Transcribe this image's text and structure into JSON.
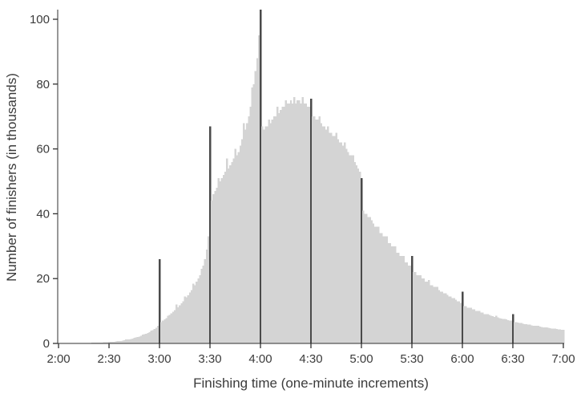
{
  "chart_data": {
    "type": "bar",
    "title": "",
    "xlabel": "Finishing time (one-minute increments)",
    "ylabel": "Number of finishers (in thousands)",
    "x_start_minutes": 120,
    "x_end_minutes": 420,
    "bin_minutes": 1,
    "x_tick_labels": [
      "2:00",
      "2:30",
      "3:00",
      "3:30",
      "4:00",
      "4:30",
      "5:00",
      "5:30",
      "6:00",
      "6:30",
      "7:00"
    ],
    "x_tick_minutes": [
      120,
      150,
      180,
      210,
      240,
      270,
      300,
      330,
      360,
      390,
      420
    ],
    "y_ticks": [
      0,
      20,
      40,
      60,
      80,
      100
    ],
    "ylim": [
      0,
      105
    ],
    "legend": "none",
    "grid": "off",
    "bar_color": "#d4d4d4",
    "spike_color": "#4a4a4a",
    "axis_color": "#2f2f2f",
    "text_color": "#3b3b3b",
    "spike_minutes": [
      180,
      210,
      240,
      270,
      300,
      330,
      360,
      390
    ],
    "values": [
      0.05,
      0.05,
      0.05,
      0.06,
      0.06,
      0.07,
      0.07,
      0.07,
      0.08,
      0.08,
      0.1,
      0.1,
      0.1,
      0.11,
      0.12,
      0.14,
      0.14,
      0.15,
      0.16,
      0.17,
      0.2,
      0.2,
      0.21,
      0.22,
      0.24,
      0.28,
      0.3,
      0.32,
      0.35,
      0.38,
      0.55,
      0.45,
      0.5,
      0.55,
      0.6,
      0.7,
      0.75,
      0.8,
      0.9,
      1.0,
      1.2,
      1.2,
      1.3,
      1.4,
      1.5,
      1.7,
      1.8,
      2.0,
      2.1,
      2.3,
      2.7,
      2.8,
      3.0,
      3.2,
      3.5,
      3.9,
      4.1,
      4.4,
      4.8,
      5.5,
      26,
      6.5,
      7.0,
      7.4,
      7.8,
      8.6,
      8.8,
      9.3,
      9.8,
      10.3,
      12,
      11.2,
      11.8,
      12.4,
      13.0,
      14.5,
      14.2,
      14.9,
      15.7,
      16.5,
      18.5,
      18.0,
      19.0,
      20.0,
      21.0,
      23.0,
      24.0,
      26.0,
      29.0,
      33.0,
      67,
      44,
      46,
      47,
      48,
      51,
      50,
      51,
      52,
      53,
      57,
      54,
      55,
      56,
      57,
      60,
      58,
      59,
      61,
      63,
      68,
      66,
      68,
      70,
      73,
      79,
      80,
      84,
      88,
      95,
      103,
      67,
      66,
      67,
      67,
      69,
      68,
      69,
      70,
      70,
      73,
      71,
      72,
      73,
      73,
      75,
      74,
      74,
      75,
      74,
      76,
      74,
      75,
      75,
      74,
      76,
      74,
      74,
      73,
      73,
      75.5,
      70,
      70,
      69,
      69,
      70,
      68,
      67,
      67,
      66,
      67,
      65,
      65,
      64,
      64,
      65,
      63,
      62,
      62,
      61,
      62,
      60,
      59,
      58,
      58,
      58,
      56,
      55,
      54,
      53,
      51,
      41,
      40,
      40,
      39,
      39,
      38,
      37,
      36,
      36,
      36,
      34,
      34,
      33,
      33,
      33,
      31,
      31,
      30,
      30,
      30,
      28,
      28,
      27,
      27,
      27,
      25,
      25,
      24,
      24,
      27,
      22,
      22,
      21,
      21,
      21,
      20,
      20,
      19,
      19,
      19.5,
      18,
      18,
      17.5,
      17.5,
      17.5,
      16.5,
      16,
      16,
      15.5,
      15.5,
      15,
      14.5,
      14.5,
      14,
      14,
      13.5,
      13,
      13,
      12.5,
      16,
      11.5,
      11.5,
      11,
      11,
      11,
      10.5,
      10.5,
      10,
      10,
      10,
      9.5,
      9.5,
      9,
      9,
      9,
      8.8,
      8.6,
      8.4,
      8.2,
      8.5,
      8,
      7.8,
      7.7,
      7.6,
      7.6,
      7.4,
      7.2,
      7.1,
      7,
      9,
      6.6,
      6.5,
      6.4,
      6.3,
      6.3,
      6.1,
      6,
      5.9,
      5.8,
      5.8,
      5.6,
      5.5,
      5.4,
      5.4,
      5.4,
      5.2,
      5.1,
      5,
      5,
      5,
      4.8,
      4.7,
      4.6,
      4.6,
      4.6,
      4.4,
      4.3,
      4.3,
      4.2,
      4.2
    ]
  }
}
